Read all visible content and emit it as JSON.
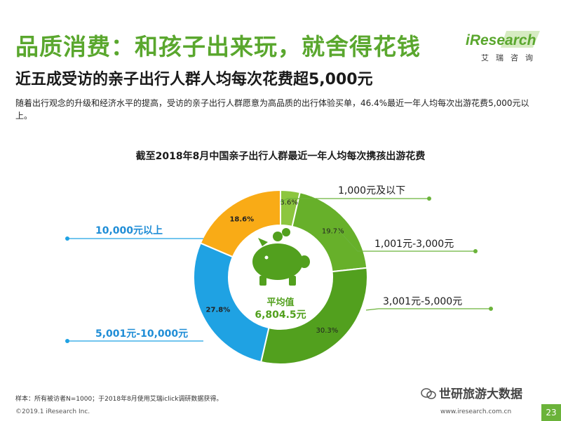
{
  "header": {
    "title": "品质消费：和孩子出来玩，就舍得花钱",
    "subtitle": "近五成受访的亲子出行人群人均每次花费超5,000元",
    "intro": "随着出行观念的升级和经济水平的提高，受访的亲子出行人群愿意为高品质的出行体验买单，46.4%最近一年人均每次出游花费5,000元以上。"
  },
  "logo": {
    "word": "iResearch",
    "cn": "艾瑞咨询",
    "brand_color": "#5aa72e"
  },
  "chart_data": {
    "type": "pie",
    "style": "donut",
    "title": "截至2018年8月中国亲子出行人群最近一年人均每次携孩出游花费",
    "center_label": "平均值",
    "center_value": "6,804.5元",
    "slices": [
      {
        "label": "1,000元及以下",
        "value": 3.6,
        "value_label": "3.6%",
        "color": "#8cc63f"
      },
      {
        "label": "1,001元-3,000元",
        "value": 19.7,
        "value_label": "19.7%",
        "color": "#67b02a"
      },
      {
        "label": "3,001元-5,000元",
        "value": 30.3,
        "value_label": "30.3%",
        "color": "#52a01e"
      },
      {
        "label": "5,001元-10,000元",
        "value": 27.8,
        "value_label": "27.8%",
        "color": "#1fa2e3"
      },
      {
        "label": "10,000元以上",
        "value": 18.6,
        "value_label": "18.6%",
        "color": "#f9ab16"
      }
    ],
    "label_colors": {
      "green": "#1a1a1a",
      "blue": "#1f8dd6",
      "yellow": "#f9ab16"
    }
  },
  "footer": {
    "footnote": "样本：所有被访者N=1000；于2018年8月使用艾瑞iclick调研数据获得。",
    "copyright": "©2019.1 iResearch Inc.",
    "website": "www.iresearch.com.cn",
    "page": "23",
    "watermark": "世研旅游大数据"
  }
}
